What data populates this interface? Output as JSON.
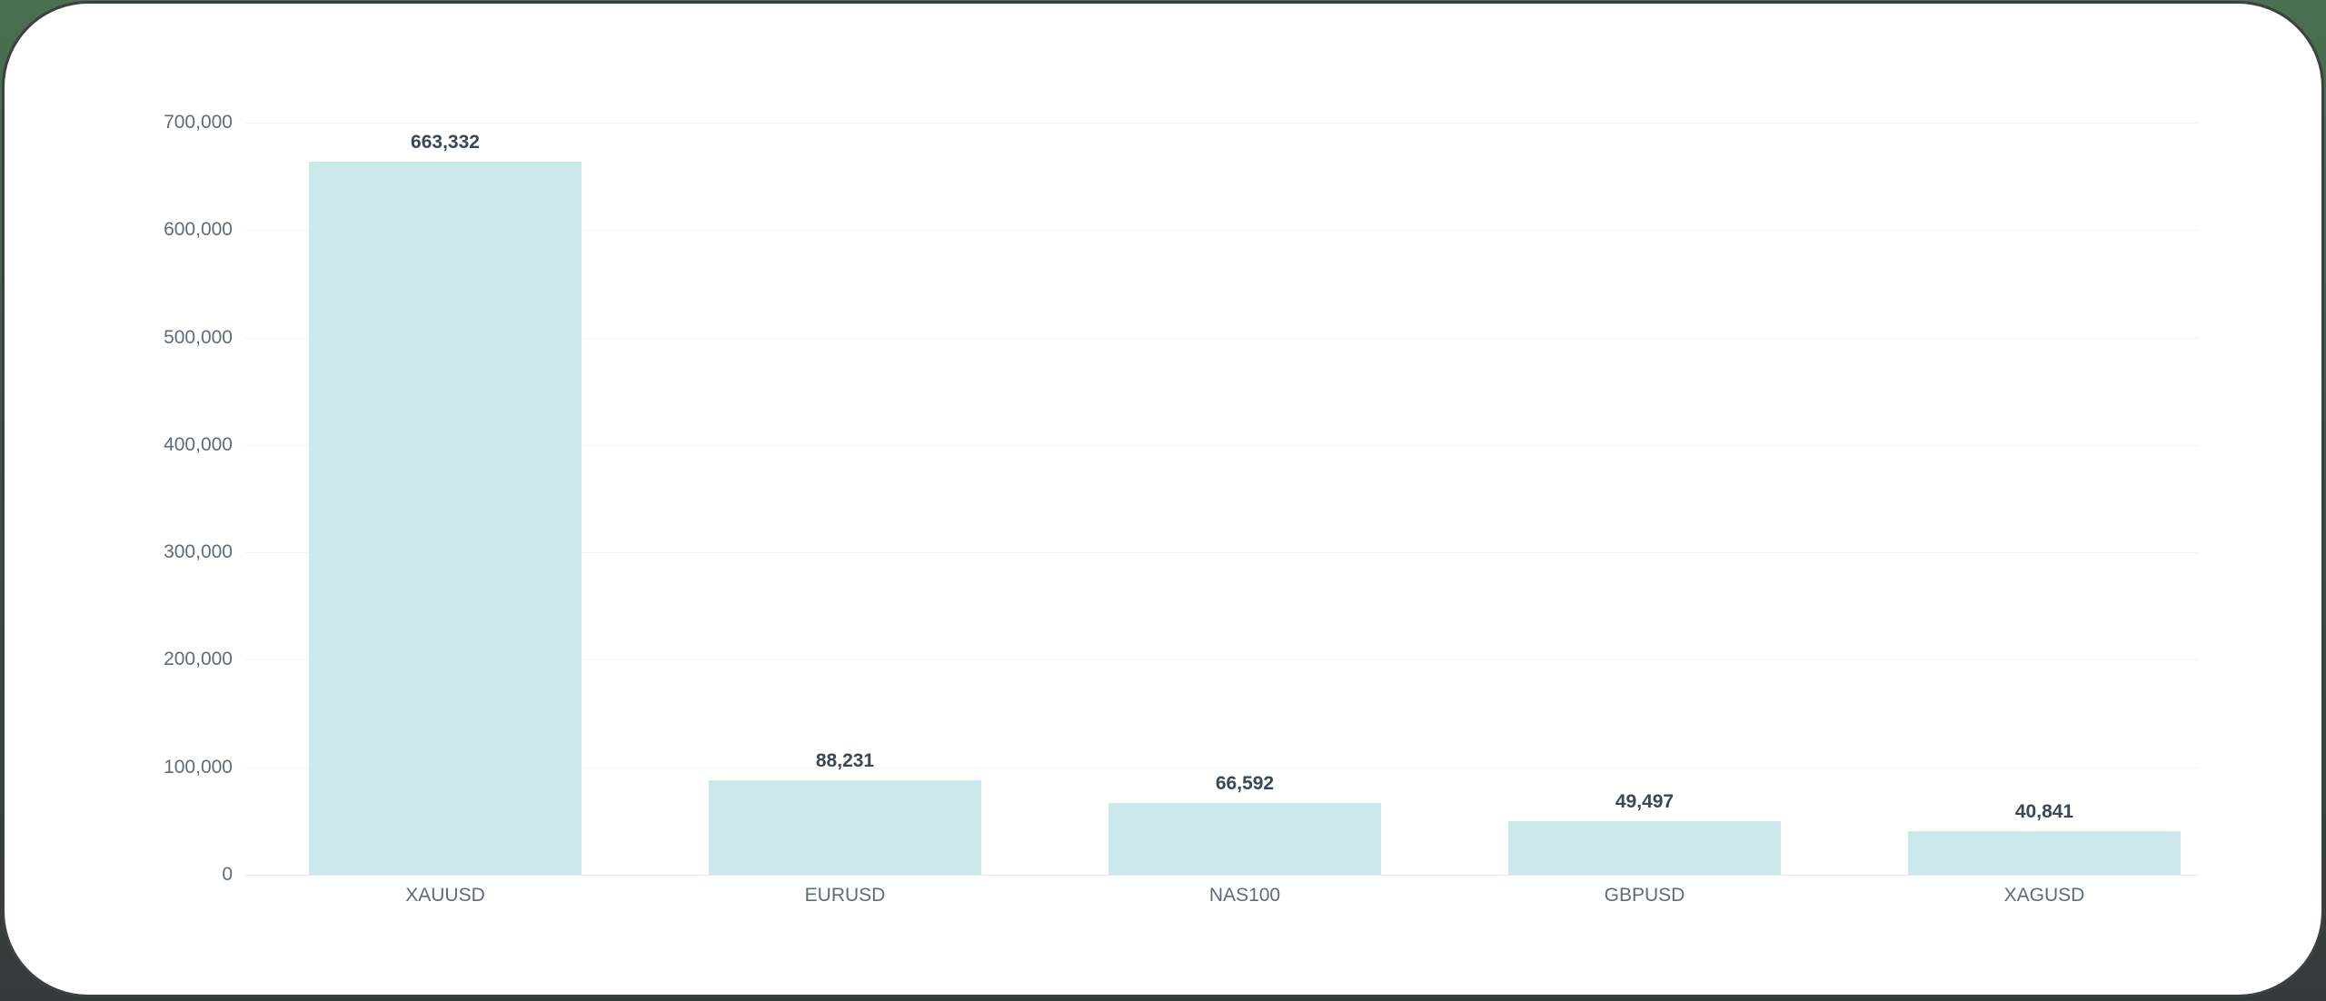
{
  "page": {
    "background_top_color": "#4a7050",
    "background_bottom_color": "#36393a",
    "card_background": "#ffffff",
    "card_border_color": "#3d4043"
  },
  "chart_data": {
    "type": "bar",
    "categories": [
      "XAUUSD",
      "EURUSD",
      "NAS100",
      "GBPUSD",
      "XAGUSD"
    ],
    "values": [
      663332,
      88231,
      66592,
      49497,
      40841
    ],
    "value_labels": [
      "663,332",
      "88,231",
      "66,592",
      "49,497",
      "40,841"
    ],
    "title": "",
    "xlabel": "",
    "ylabel": "",
    "ylim": [
      0,
      700000
    ],
    "ytick_step": 100000,
    "ytick_labels": [
      "0",
      "100,000",
      "200,000",
      "300,000",
      "400,000",
      "500,000",
      "600,000",
      "700,000"
    ],
    "grid": true,
    "legend": false,
    "bar_color": "#cbe8eb",
    "gridline_color": "#f1f3f4",
    "axis_line_color": "#e7e6e8",
    "tick_label_color": "#5f6b76",
    "value_label_color": "#3b4754"
  }
}
